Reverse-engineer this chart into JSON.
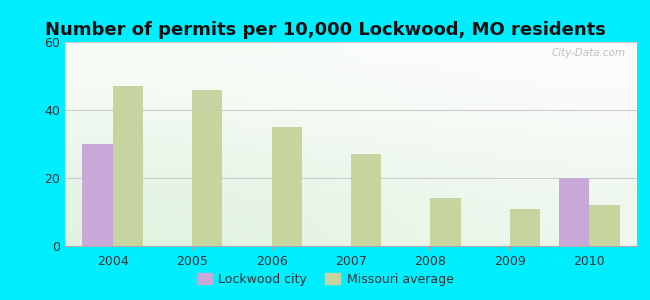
{
  "title": "Number of permits per 10,000 Lockwood, MO residents",
  "years": [
    2004,
    2005,
    2006,
    2007,
    2008,
    2009,
    2010
  ],
  "lockwood_values": [
    30,
    0,
    0,
    0,
    0,
    0,
    20
  ],
  "missouri_values": [
    47,
    46,
    35,
    27,
    14,
    11,
    12
  ],
  "lockwood_color": "#c8a8d8",
  "missouri_color": "#c8d4a0",
  "ylim": [
    0,
    60
  ],
  "yticks": [
    0,
    20,
    40,
    60
  ],
  "bg_outer": "#00eeff",
  "legend_lockwood": "Lockwood city",
  "legend_missouri": "Missouri average",
  "bar_width": 0.38,
  "title_fontsize": 13,
  "watermark": "City-Data.com"
}
